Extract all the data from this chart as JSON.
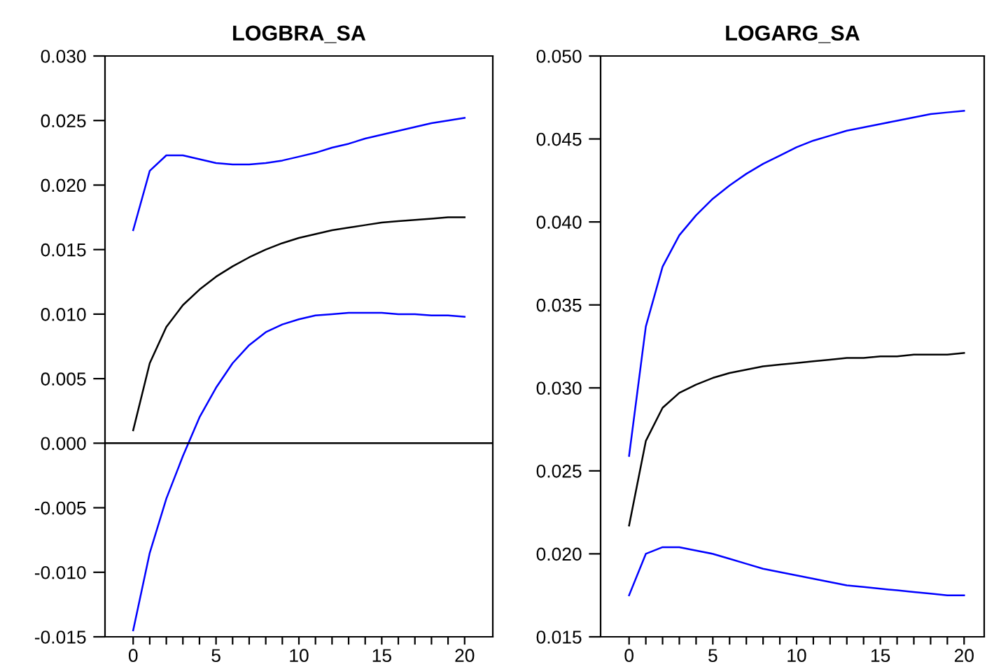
{
  "chart_data": [
    {
      "type": "line",
      "title": "LOGBRA_SA",
      "x": [
        0,
        1,
        2,
        3,
        4,
        5,
        6,
        7,
        8,
        9,
        10,
        11,
        12,
        13,
        14,
        15,
        16,
        17,
        18,
        19,
        20
      ],
      "xlim": [
        -1.7,
        21.7
      ],
      "xticks": [
        0,
        {
          "value": 1,
          "label": null
        },
        {
          "value": 2,
          "label": null
        },
        {
          "value": 3,
          "label": null
        },
        {
          "value": 4,
          "label": null
        },
        5,
        {
          "value": 6,
          "label": null
        },
        {
          "value": 7,
          "label": null
        },
        {
          "value": 8,
          "label": null
        },
        {
          "value": 9,
          "label": null
        },
        10,
        {
          "value": 11,
          "label": null
        },
        {
          "value": 12,
          "label": null
        },
        {
          "value": 13,
          "label": null
        },
        {
          "value": 14,
          "label": null
        },
        15,
        {
          "value": 16,
          "label": null
        },
        {
          "value": 17,
          "label": null
        },
        {
          "value": 18,
          "label": null
        },
        {
          "value": 19,
          "label": null
        },
        20
      ],
      "ylim": [
        -0.015,
        0.03
      ],
      "yticks": [
        {
          "value": -0.015,
          "label": "-0.015"
        },
        {
          "value": -0.01,
          "label": "-0.010"
        },
        {
          "value": -0.005,
          "label": "-0.005"
        },
        {
          "value": 0,
          "label": "0.000"
        },
        {
          "value": 0.005,
          "label": "0.005"
        },
        {
          "value": 0.01,
          "label": "0.010"
        },
        {
          "value": 0.015,
          "label": "0.015"
        },
        {
          "value": 0.02,
          "label": "0.020"
        },
        {
          "value": 0.025,
          "label": "0.025"
        },
        {
          "value": 0.03,
          "label": "0.030"
        }
      ],
      "grid": false,
      "legend": false,
      "ref_lines": [
        {
          "axis": "y",
          "value": 0,
          "color": "#000000"
        }
      ],
      "series": [
        {
          "color": "#000000",
          "values": [
            0.001,
            0.0062,
            0.009,
            0.0107,
            0.0119,
            0.0129,
            0.0137,
            0.0144,
            0.015,
            0.0155,
            0.0159,
            0.0162,
            0.0165,
            0.0167,
            0.0169,
            0.0171,
            0.0172,
            0.0173,
            0.0174,
            0.0175,
            0.0175
          ]
        },
        {
          "color": "#0000ff",
          "values": [
            0.0165,
            0.0211,
            0.0223,
            0.0223,
            0.022,
            0.0217,
            0.0216,
            0.0216,
            0.0217,
            0.0219,
            0.0222,
            0.0225,
            0.0229,
            0.0232,
            0.0236,
            0.0239,
            0.0242,
            0.0245,
            0.0248,
            0.025,
            0.0252
          ]
        },
        {
          "color": "#0000ff",
          "values": [
            -0.0145,
            -0.0085,
            -0.0043,
            -0.001,
            0.002,
            0.0043,
            0.0062,
            0.0076,
            0.0086,
            0.0092,
            0.0096,
            0.0099,
            0.01,
            0.0101,
            0.0101,
            0.0101,
            0.01,
            0.01,
            0.0099,
            0.0099,
            0.0098
          ]
        }
      ]
    },
    {
      "type": "line",
      "title": "LOGARG_SA",
      "x": [
        0,
        1,
        2,
        3,
        4,
        5,
        6,
        7,
        8,
        9,
        10,
        11,
        12,
        13,
        14,
        15,
        16,
        17,
        18,
        19,
        20
      ],
      "xlim": [
        -1.7,
        21.2
      ],
      "xticks": [
        0,
        {
          "value": 1,
          "label": null
        },
        {
          "value": 2,
          "label": null
        },
        {
          "value": 3,
          "label": null
        },
        {
          "value": 4,
          "label": null
        },
        5,
        {
          "value": 6,
          "label": null
        },
        {
          "value": 7,
          "label": null
        },
        {
          "value": 8,
          "label": null
        },
        {
          "value": 9,
          "label": null
        },
        10,
        {
          "value": 11,
          "label": null
        },
        {
          "value": 12,
          "label": null
        },
        {
          "value": 13,
          "label": null
        },
        {
          "value": 14,
          "label": null
        },
        15,
        {
          "value": 16,
          "label": null
        },
        {
          "value": 17,
          "label": null
        },
        {
          "value": 18,
          "label": null
        },
        {
          "value": 19,
          "label": null
        },
        20
      ],
      "ylim": [
        0.015,
        0.05
      ],
      "yticks": [
        {
          "value": 0.015,
          "label": "0.015"
        },
        {
          "value": 0.02,
          "label": "0.020"
        },
        {
          "value": 0.025,
          "label": "0.025"
        },
        {
          "value": 0.03,
          "label": "0.030"
        },
        {
          "value": 0.035,
          "label": "0.035"
        },
        {
          "value": 0.04,
          "label": "0.040"
        },
        {
          "value": 0.045,
          "label": "0.045"
        },
        {
          "value": 0.05,
          "label": "0.050"
        }
      ],
      "grid": false,
      "legend": false,
      "series": [
        {
          "color": "#000000",
          "values": [
            0.0217,
            0.0268,
            0.0288,
            0.0297,
            0.0302,
            0.0306,
            0.0309,
            0.0311,
            0.0313,
            0.0314,
            0.0315,
            0.0316,
            0.0317,
            0.0318,
            0.0318,
            0.0319,
            0.0319,
            0.032,
            0.032,
            0.032,
            0.0321
          ]
        },
        {
          "color": "#0000ff",
          "values": [
            0.0259,
            0.0337,
            0.0373,
            0.0392,
            0.0404,
            0.0414,
            0.0422,
            0.0429,
            0.0435,
            0.044,
            0.0445,
            0.0449,
            0.0452,
            0.0455,
            0.0457,
            0.0459,
            0.0461,
            0.0463,
            0.0465,
            0.0466,
            0.0467
          ]
        },
        {
          "color": "#0000ff",
          "values": [
            0.0175,
            0.02,
            0.0204,
            0.0204,
            0.0202,
            0.02,
            0.0197,
            0.0194,
            0.0191,
            0.0189,
            0.0187,
            0.0185,
            0.0183,
            0.0181,
            0.018,
            0.0179,
            0.0178,
            0.0177,
            0.0176,
            0.0175,
            0.0175
          ]
        }
      ]
    }
  ]
}
